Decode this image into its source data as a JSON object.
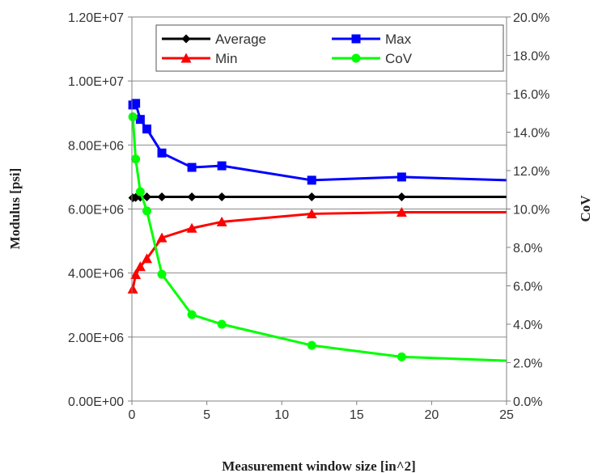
{
  "chart_data": {
    "type": "line",
    "xlabel": "Measurement window size [in^2]",
    "ylabel": "Modulus [psi]",
    "y2label": "CoV",
    "xlim": [
      0,
      25
    ],
    "ylim": [
      0,
      12000000
    ],
    "y2lim": [
      0,
      0.2
    ],
    "x_ticks": [
      0,
      5,
      10,
      15,
      20,
      25
    ],
    "x_tick_labels": [
      "0",
      "5",
      "10",
      "15",
      "20",
      "25"
    ],
    "y_ticks": [
      0,
      2000000,
      4000000,
      6000000,
      8000000,
      10000000,
      12000000
    ],
    "y_tick_labels": [
      "0.00E+00",
      "2.00E+06",
      "4.00E+06",
      "6.00E+06",
      "8.00E+06",
      "1.00E+07",
      "1.20E+07"
    ],
    "y2_ticks": [
      0,
      0.02,
      0.04,
      0.06,
      0.08,
      0.1,
      0.12,
      0.14,
      0.16,
      0.18,
      0.2
    ],
    "y2_tick_labels": [
      "0.0%",
      "2.0%",
      "4.0%",
      "6.0%",
      "8.0%",
      "10.0%",
      "12.0%",
      "14.0%",
      "16.0%",
      "18.0%",
      "20.0%"
    ],
    "grid": "horizontal",
    "legend_position": "top",
    "series": [
      {
        "name": "Average",
        "axis": "left",
        "color": "#000000",
        "marker": "diamond",
        "x": [
          0.06,
          0.25,
          0.56,
          1,
          2,
          4,
          6,
          12,
          18,
          25
        ],
        "y": [
          6350000,
          6360000,
          6370000,
          6380000,
          6380000,
          6380000,
          6380000,
          6380000,
          6380000,
          6380000
        ],
        "marker_count": 9
      },
      {
        "name": "Max",
        "axis": "left",
        "color": "#0000ff",
        "marker": "square",
        "x": [
          0.06,
          0.25,
          0.56,
          1,
          2,
          4,
          6,
          12,
          18,
          25
        ],
        "y": [
          9250000,
          9300000,
          8800000,
          8500000,
          7750000,
          7300000,
          7350000,
          6900000,
          7000000,
          6900000
        ],
        "marker_count": 9
      },
      {
        "name": "Min",
        "axis": "left",
        "color": "#ff0000",
        "marker": "triangle",
        "x": [
          0.06,
          0.25,
          0.56,
          1,
          2,
          4,
          6,
          12,
          18,
          25
        ],
        "y": [
          3500000,
          3950000,
          4200000,
          4450000,
          5100000,
          5400000,
          5600000,
          5850000,
          5900000,
          5900000
        ],
        "marker_count": 9
      },
      {
        "name": "CoV",
        "axis": "right",
        "color": "#00ff00",
        "marker": "circle",
        "x": [
          0.06,
          0.25,
          0.56,
          1,
          2,
          4,
          6,
          12,
          18,
          25
        ],
        "y": [
          0.148,
          0.126,
          0.109,
          0.099,
          0.066,
          0.045,
          0.04,
          0.029,
          0.023,
          0.021
        ],
        "marker_count": 9
      }
    ]
  }
}
